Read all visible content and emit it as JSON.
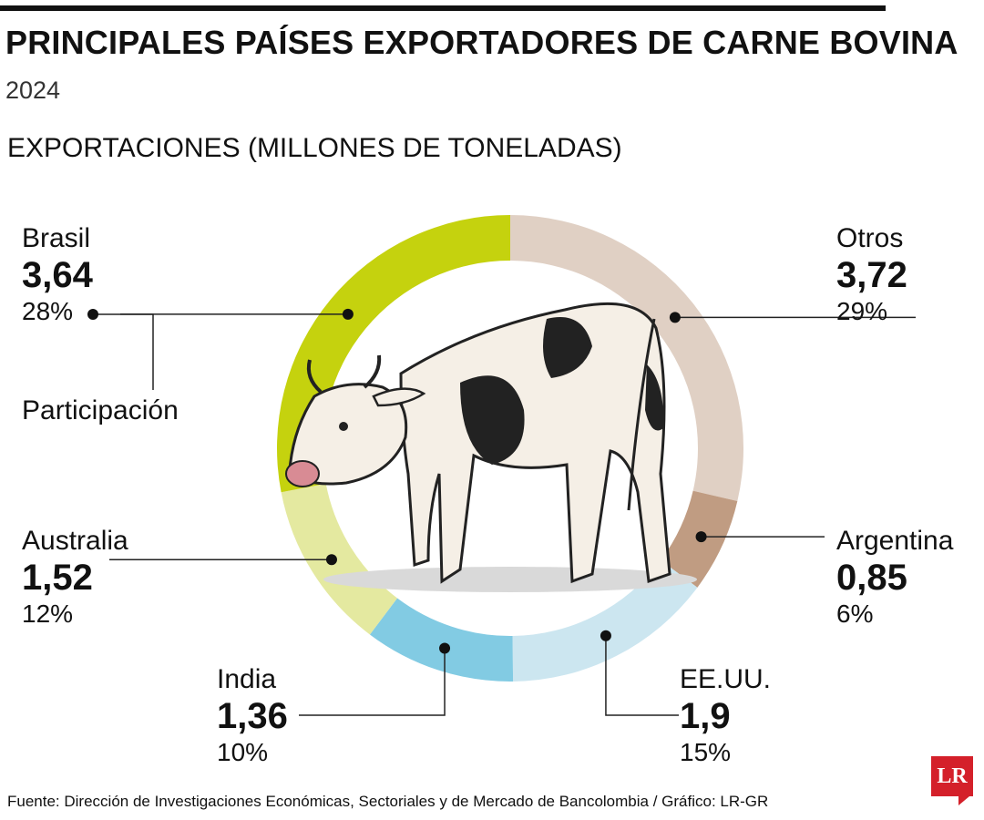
{
  "header": {
    "title": "PRINCIPALES PAÍSES EXPORTADORES DE CARNE BOVINA",
    "year": "2024",
    "unit_label": "EXPORTACIONES (MILLONES DE TONELADAS)"
  },
  "legend": {
    "participation_label": "Participación"
  },
  "chart_data": {
    "type": "pie",
    "style": "donut",
    "title": "PRINCIPALES PAÍSES EXPORTADORES DE CARNE BOVINA",
    "subtitle": "2024",
    "value_label": "EXPORTACIONES (MILLONES DE TONELADAS)",
    "categories": [
      "Otros",
      "Argentina",
      "EE.UU.",
      "India",
      "Australia",
      "Brasil"
    ],
    "values": [
      3.72,
      0.85,
      1.9,
      1.36,
      1.52,
      3.64
    ],
    "value_labels": [
      "3,72",
      "0,85",
      "1,9",
      "1,36",
      "1,52",
      "3,64"
    ],
    "percent_labels": [
      "29%",
      "6%",
      "15%",
      "10%",
      "12%",
      "28%"
    ],
    "percents": [
      29,
      6,
      15,
      10,
      12,
      28
    ],
    "colors": [
      "#e0d0c4",
      "#c09c82",
      "#cce6f0",
      "#82cbe3",
      "#e4e9a0",
      "#c5d20e"
    ]
  },
  "footer": {
    "source": "Fuente: Dirección de Investigaciones Económicas, Sectoriales y de Mercado de Bancolombia / Gráfico: LR-GR",
    "logo": "LR"
  }
}
